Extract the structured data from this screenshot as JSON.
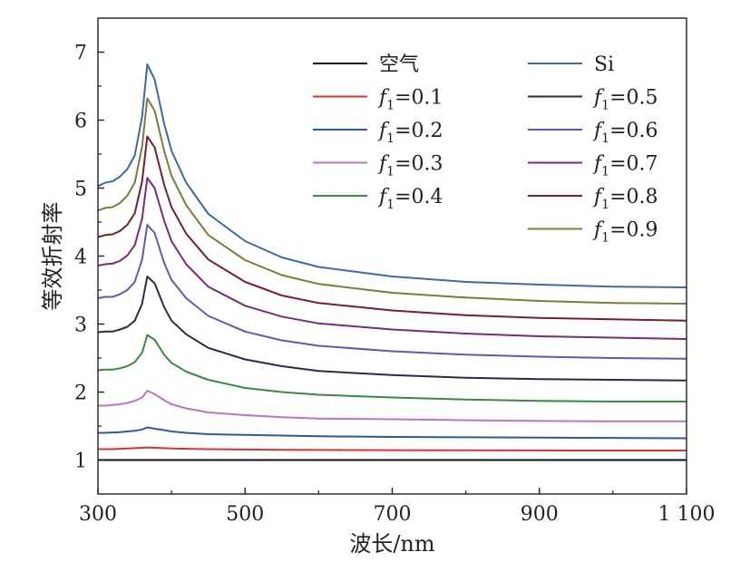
{
  "chart_data": {
    "type": "line",
    "xlabel": "波长/nm",
    "ylabel": "等效折射率",
    "xlim": [
      300,
      1100
    ],
    "ylim": [
      0.5,
      7.5
    ],
    "xticks": [
      300,
      500,
      700,
      900,
      1100
    ],
    "xtick_labels": [
      "300",
      "500",
      "700",
      "900",
      "1 100"
    ],
    "yticks": [
      1,
      2,
      3,
      4,
      5,
      6,
      7
    ],
    "ytick_labels": [
      "1",
      "2",
      "3",
      "4",
      "5",
      "6",
      "7"
    ],
    "grid": false,
    "legend_position": "top-right",
    "x": [
      300,
      310,
      320,
      330,
      340,
      350,
      360,
      367,
      377,
      390,
      400,
      420,
      450,
      500,
      550,
      600,
      700,
      800,
      900,
      1000,
      1100
    ],
    "series": [
      {
        "name": "空气",
        "label_main": "空气",
        "label_sub": "",
        "label_eq": "",
        "color": "#111111",
        "values": [
          1.0,
          1.0,
          1.0,
          1.0,
          1.0,
          1.0,
          1.0,
          1.0,
          1.0,
          1.0,
          1.0,
          1.0,
          1.0,
          1.0,
          1.0,
          1.0,
          1.0,
          1.0,
          1.0,
          1.0,
          1.0
        ]
      },
      {
        "name": "f1=0.1",
        "label_main": "f",
        "label_sub": "1",
        "label_eq": "=0.1",
        "color": "#e03030",
        "values": [
          1.16,
          1.16,
          1.16,
          1.165,
          1.17,
          1.175,
          1.18,
          1.185,
          1.18,
          1.175,
          1.17,
          1.165,
          1.16,
          1.155,
          1.15,
          1.148,
          1.145,
          1.143,
          1.141,
          1.14,
          1.14
        ]
      },
      {
        "name": "f1=0.2",
        "label_main": "f",
        "label_sub": "1",
        "label_eq": "=0.2",
        "color": "#2c5aa0",
        "values": [
          1.4,
          1.4,
          1.405,
          1.41,
          1.42,
          1.43,
          1.45,
          1.48,
          1.46,
          1.44,
          1.42,
          1.4,
          1.38,
          1.37,
          1.36,
          1.35,
          1.34,
          1.335,
          1.33,
          1.325,
          1.32
        ]
      },
      {
        "name": "f1=0.3",
        "label_main": "f",
        "label_sub": "1",
        "label_eq": "=0.3",
        "color": "#c070c8",
        "values": [
          1.8,
          1.8,
          1.81,
          1.82,
          1.84,
          1.87,
          1.92,
          2.02,
          1.97,
          1.88,
          1.82,
          1.76,
          1.7,
          1.66,
          1.63,
          1.61,
          1.6,
          1.585,
          1.575,
          1.57,
          1.57
        ]
      },
      {
        "name": "f1=0.4",
        "label_main": "f",
        "label_sub": "1",
        "label_eq": "=0.4",
        "color": "#3a8a40",
        "values": [
          2.32,
          2.33,
          2.33,
          2.35,
          2.38,
          2.44,
          2.58,
          2.84,
          2.77,
          2.55,
          2.43,
          2.3,
          2.18,
          2.06,
          2.0,
          1.96,
          1.92,
          1.89,
          1.87,
          1.86,
          1.86
        ]
      },
      {
        "name": "f1=0.5",
        "label_main": "f",
        "label_sub": "1",
        "label_eq": "=0.5",
        "color": "#2a2a4a",
        "values": [
          2.88,
          2.89,
          2.89,
          2.92,
          2.96,
          3.05,
          3.3,
          3.7,
          3.6,
          3.25,
          3.05,
          2.85,
          2.65,
          2.48,
          2.38,
          2.31,
          2.25,
          2.21,
          2.19,
          2.18,
          2.17
        ]
      },
      {
        "name": "f1=0.6",
        "label_main": "f",
        "label_sub": "1",
        "label_eq": "=0.6",
        "color": "#6655b5",
        "values": [
          3.38,
          3.4,
          3.4,
          3.44,
          3.5,
          3.62,
          3.95,
          4.46,
          4.34,
          3.9,
          3.65,
          3.38,
          3.12,
          2.89,
          2.76,
          2.68,
          2.6,
          2.55,
          2.52,
          2.5,
          2.49
        ]
      },
      {
        "name": "f1=0.7",
        "label_main": "f",
        "label_sub": "1",
        "label_eq": "=0.7",
        "color": "#7a2a7a",
        "values": [
          3.86,
          3.88,
          3.89,
          3.93,
          4.01,
          4.16,
          4.55,
          5.15,
          5.0,
          4.52,
          4.22,
          3.88,
          3.55,
          3.27,
          3.11,
          3.01,
          2.92,
          2.86,
          2.82,
          2.8,
          2.78
        ]
      },
      {
        "name": "f1=0.8",
        "label_main": "f",
        "label_sub": "1",
        "label_eq": "=0.8",
        "color": "#7a1e28",
        "values": [
          4.28,
          4.31,
          4.32,
          4.37,
          4.46,
          4.63,
          5.1,
          5.76,
          5.6,
          5.05,
          4.72,
          4.33,
          3.95,
          3.62,
          3.42,
          3.31,
          3.2,
          3.13,
          3.09,
          3.07,
          3.05
        ]
      },
      {
        "name": "f1=0.9",
        "label_main": "f",
        "label_sub": "1",
        "label_eq": "=0.9",
        "color": "#7d7a3a",
        "values": [
          4.67,
          4.71,
          4.72,
          4.78,
          4.89,
          5.08,
          5.61,
          6.32,
          6.14,
          5.55,
          5.18,
          4.75,
          4.31,
          3.94,
          3.72,
          3.59,
          3.46,
          3.39,
          3.34,
          3.31,
          3.3
        ]
      },
      {
        "name": "Si",
        "label_main": "Si",
        "label_sub": "",
        "label_eq": "",
        "color": "#3b6aa8",
        "values": [
          5.03,
          5.08,
          5.1,
          5.17,
          5.28,
          5.48,
          6.05,
          6.82,
          6.6,
          5.95,
          5.55,
          5.08,
          4.62,
          4.22,
          3.98,
          3.84,
          3.7,
          3.62,
          3.58,
          3.55,
          3.54
        ]
      }
    ],
    "legend_columns": [
      [
        "空气",
        "f1=0.1",
        "f1=0.2",
        "f1=0.3",
        "f1=0.4"
      ],
      [
        "Si",
        "f1=0.5",
        "f1=0.6",
        "f1=0.7",
        "f1=0.8",
        "f1=0.9"
      ]
    ]
  }
}
